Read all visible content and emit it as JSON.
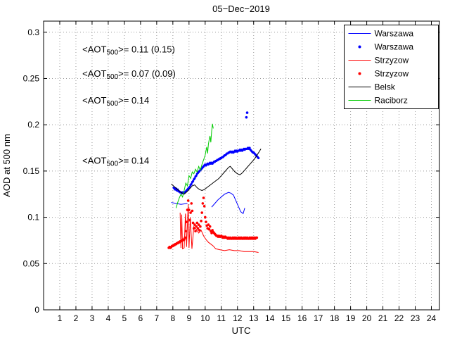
{
  "page": {
    "background": "#ffffff"
  },
  "chart_data": {
    "type": "line",
    "title": "05−Dec−2019",
    "xlabel": "UTC",
    "ylabel": "AOD at 500 nm",
    "xlim": [
      0,
      24.5
    ],
    "ylim": [
      0,
      0.312
    ],
    "xticks": [
      1,
      2,
      3,
      4,
      5,
      6,
      7,
      8,
      9,
      10,
      11,
      12,
      13,
      14,
      15,
      16,
      17,
      18,
      19,
      20,
      21,
      22,
      23,
      24
    ],
    "yticks": [
      0,
      0.05,
      0.1,
      0.15,
      0.2,
      0.25,
      0.3
    ],
    "ytick_labels": [
      "0",
      "0.05",
      "0.1",
      "0.15",
      "0.2",
      "0.25",
      "0.3"
    ],
    "grid": true,
    "grid_color": "#999999",
    "axis_color": "#000000",
    "legend_position": "top-right",
    "series": [
      {
        "name": "Warszawa",
        "kind": "line",
        "color": "#0000ff",
        "points": [
          [
            7.9,
            0.116
          ],
          [
            8.2,
            0.115
          ],
          [
            8.5,
            0.114
          ],
          [
            8.9,
            0.115
          ],
          null,
          [
            10.4,
            0.111
          ],
          [
            10.6,
            0.115
          ],
          [
            10.8,
            0.119
          ],
          [
            11.0,
            0.122
          ],
          [
            11.2,
            0.125
          ],
          [
            11.45,
            0.127
          ],
          [
            11.6,
            0.126
          ],
          [
            11.75,
            0.124
          ],
          [
            11.9,
            0.118
          ],
          [
            12.05,
            0.112
          ],
          [
            12.2,
            0.106
          ],
          [
            12.35,
            0.104
          ],
          [
            12.45,
            0.11
          ]
        ]
      },
      {
        "name": "Warszawa",
        "kind": "scatter",
        "color": "#0000ff",
        "size": 1.6,
        "x0": 8.05,
        "dx": 0.05,
        "ys": [
          0.132,
          0.131,
          0.13,
          0.131,
          0.129,
          0.13,
          0.128,
          0.128,
          0.127,
          0.127,
          0.126,
          0.127,
          0.126,
          0.127,
          0.127,
          0.128,
          0.129,
          0.13,
          0.131,
          0.132,
          0.133,
          0.135,
          0.136,
          0.138,
          0.139,
          0.141,
          0.142,
          0.144,
          0.145,
          0.147,
          0.148,
          0.149,
          0.15,
          0.151,
          0.152,
          0.153,
          0.154,
          0.155,
          0.156,
          0.157,
          0.156,
          0.157,
          0.158,
          0.157,
          0.158,
          0.159,
          0.158,
          0.159,
          0.158,
          0.159,
          0.16,
          0.16,
          0.161,
          0.161,
          0.162,
          0.162,
          0.163,
          0.163,
          0.164,
          0.164,
          0.165,
          0.165,
          0.166,
          0.167,
          0.167,
          0.168,
          0.169,
          0.169,
          0.17,
          0.17,
          0.171,
          0.171,
          0.17,
          0.171,
          0.17,
          0.171,
          0.172,
          0.171,
          0.172,
          0.171,
          0.172,
          0.172,
          0.173,
          0.172,
          0.173,
          0.172,
          0.173,
          0.174,
          0.173,
          0.174,
          0.174,
          0.174,
          0.175,
          0.174,
          0.175,
          0.173,
          0.172,
          0.171,
          0.17,
          0.17,
          0.169,
          0.168,
          0.167,
          0.166,
          0.165,
          0.164
        ]
      },
      {
        "name": "Strzyzow",
        "kind": "line",
        "color": "#ff0000",
        "points": [
          [
            8.45,
            0.105
          ],
          [
            8.5,
            0.067
          ],
          [
            8.55,
            0.103
          ],
          [
            8.6,
            0.066
          ],
          [
            8.7,
            0.067
          ],
          [
            8.78,
            0.104
          ],
          [
            8.85,
            0.068
          ],
          [
            8.95,
            0.114
          ],
          [
            9.0,
            0.067
          ],
          [
            9.08,
            0.1
          ],
          [
            9.18,
            0.066
          ],
          [
            9.3,
            0.09
          ],
          [
            9.45,
            0.087
          ],
          [
            9.6,
            0.083
          ],
          [
            9.75,
            0.086
          ],
          [
            9.9,
            0.08
          ],
          [
            10.05,
            0.076
          ],
          [
            10.2,
            0.073
          ],
          [
            10.35,
            0.071
          ],
          [
            10.5,
            0.069
          ],
          [
            10.65,
            0.066
          ],
          [
            10.9,
            0.065
          ],
          [
            11.2,
            0.064
          ],
          [
            11.5,
            0.065
          ],
          [
            11.8,
            0.064
          ],
          [
            12.1,
            0.064
          ],
          [
            12.4,
            0.063
          ],
          [
            12.7,
            0.063
          ],
          [
            13.0,
            0.063
          ],
          [
            13.3,
            0.062
          ]
        ]
      },
      {
        "name": "Strzyzow",
        "kind": "scatter",
        "color": "#ff0000",
        "size": 1.8,
        "x0": 7.75,
        "dx": 0.05,
        "ys": [
          0.067,
          0.068,
          0.067,
          0.068,
          0.069,
          0.069,
          0.07,
          0.07,
          0.071,
          0.071,
          0.072,
          0.072,
          0.073,
          0.073,
          0.074,
          0.074,
          0.075,
          0.075,
          0.076,
          0.076,
          0.078,
          0.085,
          0.095,
          0.108,
          0.118,
          0.108,
          0.097,
          0.105,
          0.115,
          0.107,
          0.094,
          0.088,
          0.092,
          0.085,
          0.09,
          0.094,
          0.088,
          0.092,
          0.086,
          0.09,
          0.096,
          0.105,
          0.115,
          0.121,
          0.112,
          0.1,
          0.095,
          0.091,
          0.088,
          0.092,
          0.087,
          0.09,
          0.085,
          0.083,
          0.086,
          0.084,
          0.083,
          0.082,
          0.081,
          0.08,
          0.08,
          0.079,
          0.08,
          0.079,
          0.079,
          0.08,
          0.079,
          0.078,
          0.079,
          0.078,
          0.079,
          0.078,
          0.078,
          0.077,
          0.078,
          0.077,
          0.078,
          0.077,
          0.077,
          0.078,
          0.077,
          0.078,
          0.077,
          0.078,
          0.077,
          0.077,
          0.078,
          0.077,
          0.078,
          0.077,
          0.078,
          0.077,
          0.077,
          0.078,
          0.077,
          0.078,
          0.077,
          0.078,
          0.077,
          0.077,
          0.078,
          0.077,
          0.078,
          0.077,
          0.078,
          0.077,
          0.078,
          0.077,
          0.078,
          0.078
        ]
      },
      {
        "name": "Belsk",
        "kind": "line",
        "color": "#000000",
        "points": [
          [
            7.9,
            0.136
          ],
          [
            8.1,
            0.133
          ],
          [
            8.3,
            0.13
          ],
          [
            8.5,
            0.127
          ],
          [
            8.7,
            0.125
          ],
          [
            8.9,
            0.128
          ],
          [
            9.05,
            0.131
          ],
          [
            9.2,
            0.134
          ],
          [
            9.35,
            0.135
          ],
          [
            9.5,
            0.132
          ],
          [
            9.65,
            0.13
          ],
          [
            9.8,
            0.129
          ],
          [
            9.95,
            0.13
          ],
          [
            10.1,
            0.132
          ],
          [
            10.25,
            0.134
          ],
          [
            10.4,
            0.136
          ],
          [
            10.55,
            0.138
          ],
          [
            10.7,
            0.14
          ],
          [
            10.85,
            0.142
          ],
          [
            11.0,
            0.145
          ],
          [
            11.15,
            0.148
          ],
          [
            11.3,
            0.151
          ],
          [
            11.45,
            0.154
          ],
          [
            11.55,
            0.155
          ],
          [
            11.7,
            0.152
          ],
          [
            11.85,
            0.149
          ],
          [
            12.0,
            0.147
          ],
          [
            12.15,
            0.146
          ],
          [
            12.3,
            0.148
          ],
          [
            12.45,
            0.151
          ],
          [
            12.6,
            0.154
          ],
          [
            12.75,
            0.157
          ],
          [
            12.9,
            0.16
          ],
          [
            13.05,
            0.163
          ],
          [
            13.2,
            0.167
          ],
          [
            13.35,
            0.171
          ],
          [
            13.45,
            0.174
          ]
        ]
      },
      {
        "name": "Raciborz",
        "kind": "line",
        "color": "#00cc00",
        "points": [
          [
            8.2,
            0.11
          ],
          [
            8.3,
            0.116
          ],
          [
            8.4,
            0.121
          ],
          [
            8.5,
            0.125
          ],
          [
            8.6,
            0.122
          ],
          [
            8.7,
            0.129
          ],
          [
            8.8,
            0.137
          ],
          [
            8.9,
            0.134
          ],
          [
            9.0,
            0.145
          ],
          [
            9.1,
            0.142
          ],
          [
            9.2,
            0.149
          ],
          [
            9.3,
            0.147
          ],
          [
            9.4,
            0.152
          ],
          [
            9.5,
            0.149
          ],
          [
            9.6,
            0.155
          ],
          [
            9.7,
            0.151
          ],
          [
            9.8,
            0.157
          ],
          [
            9.9,
            0.162
          ],
          [
            10.0,
            0.167
          ],
          [
            10.05,
            0.172
          ],
          [
            10.1,
            0.176
          ],
          [
            10.15,
            0.169
          ],
          [
            10.2,
            0.179
          ],
          [
            10.25,
            0.184
          ],
          [
            10.3,
            0.188
          ],
          [
            10.35,
            0.181
          ],
          [
            10.4,
            0.193
          ],
          [
            10.45,
            0.201
          ],
          [
            10.5,
            0.196
          ]
        ]
      },
      {
        "name": "Warszawa",
        "kind": "scatter",
        "color": "#0000ff",
        "size": 1.8,
        "legend": false,
        "points": [
          [
            12.55,
            0.208
          ],
          [
            12.6,
            0.213
          ]
        ]
      }
    ],
    "annotations": [
      {
        "pre": "<AOT",
        "sub": "500",
        "post": ">= 0.11 (0.15)",
        "color": "#0000ff",
        "x": 2.4,
        "y": 0.278
      },
      {
        "pre": "<AOT",
        "sub": "500",
        "post": ">= 0.07 (0.09)",
        "color": "#ff0000",
        "x": 2.4,
        "y": 0.252
      },
      {
        "pre": "<AOT",
        "sub": "500",
        "post": ">= 0.14",
        "color": "#000000",
        "x": 2.4,
        "y": 0.223
      },
      {
        "pre": "<AOT",
        "sub": "500",
        "post": ">= 0.14",
        "color": "#00cc00",
        "x": 2.4,
        "y": 0.158
      }
    ]
  }
}
